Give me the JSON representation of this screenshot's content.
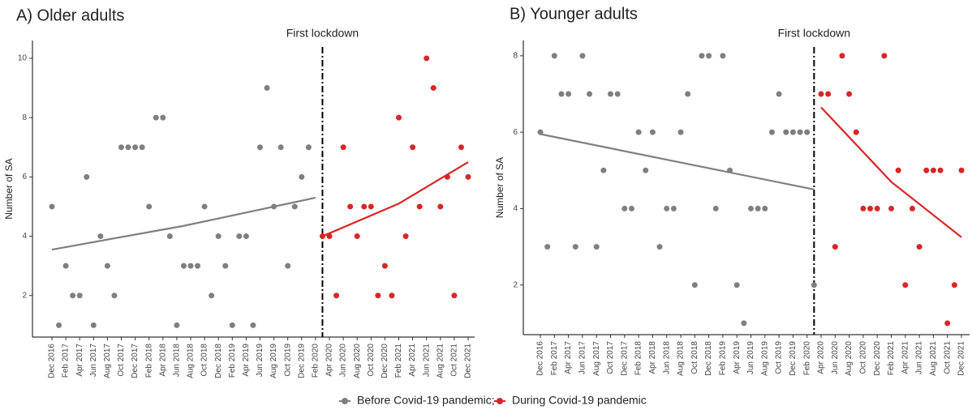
{
  "chart_data": [
    {
      "type": "scatter",
      "title": "A) Older adults",
      "ylabel": "Number of SA",
      "categories": [
        "Dec 2016",
        null,
        "Feb 2017",
        null,
        "Apr 2017",
        null,
        "Jun 2017",
        null,
        "Aug 2017",
        null,
        "Oct 2017",
        null,
        "Dec 2017",
        null,
        "Feb 2018",
        null,
        "Apr 2018",
        null,
        "Jun 2018",
        null,
        "Aug 2018",
        null,
        "Oct 2018",
        null,
        "Dec 2018",
        null,
        "Feb 2019",
        null,
        "Apr 2019",
        null,
        "Jun 2019",
        null,
        "Aug 2019",
        null,
        "Oct 2019",
        null,
        "Dec 2019",
        null,
        "Feb 2020",
        null,
        "Apr 2020",
        null,
        "Jun 2020",
        null,
        "Aug 2020",
        null,
        "Oct 2020",
        null,
        "Dec 2020",
        null,
        "Feb 2021",
        null,
        "Apr 2021",
        null,
        "Jun 2021",
        null,
        "Aug 2021",
        null,
        "Oct 2021",
        null,
        "Dec 2021"
      ],
      "ylim": [
        0.6,
        10.6
      ],
      "yticks": [
        2,
        4,
        6,
        8,
        10
      ],
      "annotation": {
        "text": "First lockdown",
        "x_index": 39
      },
      "series": [
        {
          "name": "Before Covid-19 pandemic;",
          "color": "#7f7f7f",
          "values": [
            5,
            1,
            3,
            2,
            2,
            6,
            1,
            4,
            3,
            2,
            7,
            7,
            7,
            7,
            5,
            8,
            8,
            4,
            1,
            3,
            3,
            3,
            5,
            2,
            4,
            3,
            1,
            4,
            4,
            1,
            7,
            9,
            5,
            7,
            3,
            5,
            6,
            7,
            null,
            null,
            null,
            null,
            null,
            null,
            null,
            null,
            null,
            null,
            null,
            null,
            null,
            null,
            null,
            null,
            null,
            null,
            null,
            null,
            null,
            null,
            null
          ],
          "trend": {
            "x_index": [
              0,
              19,
              38
            ],
            "values": [
              3.55,
              4.35,
              5.3
            ]
          }
        },
        {
          "name": "During Covid-19 pandemic",
          "color": "#d62728",
          "values": [
            null,
            null,
            null,
            null,
            null,
            null,
            null,
            null,
            null,
            null,
            null,
            null,
            null,
            null,
            null,
            null,
            null,
            null,
            null,
            null,
            null,
            null,
            null,
            null,
            null,
            null,
            null,
            null,
            null,
            null,
            null,
            null,
            null,
            null,
            null,
            null,
            null,
            null,
            null,
            4,
            4,
            2,
            7,
            5,
            4,
            5,
            5,
            2,
            3,
            2,
            8,
            4,
            7,
            5,
            10,
            9,
            5,
            6,
            2,
            7,
            6
          ],
          "trend": {
            "x_index": [
              39,
              50,
              60
            ],
            "values": [
              4.0,
              5.1,
              6.5
            ]
          }
        }
      ]
    },
    {
      "type": "scatter",
      "title": "B) Younger adults",
      "ylabel": "Number of SA",
      "categories": [
        "Dec 2016",
        null,
        "Feb 2017",
        null,
        "Apr 2017",
        null,
        "Jun 2017",
        null,
        "Aug 2017",
        null,
        "Oct 2017",
        null,
        "Dec 2017",
        null,
        "Feb 2018",
        null,
        "Apr 2018",
        null,
        "Jun 2018",
        null,
        "Aug 2018",
        null,
        "Oct 2018",
        null,
        "Dec 2018",
        null,
        "Feb 2019",
        null,
        "Apr 2019",
        null,
        "Jun 2019",
        null,
        "Aug 2019",
        null,
        "Oct 2019",
        null,
        "Dec 2019",
        null,
        "Feb 2020",
        null,
        "Apr 2020",
        null,
        "Jun 2020",
        null,
        "Aug 2020",
        null,
        "Oct 2020",
        null,
        "Dec 2020",
        null,
        "Feb 2021",
        null,
        "Apr 2021",
        null,
        "Jun 2021",
        null,
        "Aug 2021",
        null,
        "Oct 2021",
        null,
        "Dec 2021"
      ],
      "ylim": [
        0.7,
        8.4
      ],
      "yticks": [
        2,
        4,
        6,
        8
      ],
      "annotation": {
        "text": "First lockdown",
        "x_index": 39
      },
      "series": [
        {
          "color": "#7f7f7f",
          "values": [
            6,
            3,
            8,
            7,
            7,
            3,
            8,
            7,
            3,
            5,
            7,
            7,
            4,
            4,
            6,
            5,
            6,
            3,
            4,
            4,
            6,
            7,
            2,
            8,
            8,
            4,
            8,
            5,
            2,
            1,
            4,
            4,
            4,
            6,
            7,
            6,
            6,
            6,
            6,
            2,
            null,
            null,
            null,
            null,
            null,
            null,
            null,
            null,
            null,
            null,
            null,
            null,
            null,
            null,
            null,
            null,
            null,
            null,
            null,
            null,
            null
          ],
          "trend": {
            "x_index": [
              0,
              39
            ],
            "values": [
              5.95,
              4.5
            ]
          }
        },
        {
          "color": "#d62728",
          "values": [
            null,
            null,
            null,
            null,
            null,
            null,
            null,
            null,
            null,
            null,
            null,
            null,
            null,
            null,
            null,
            null,
            null,
            null,
            null,
            null,
            null,
            null,
            null,
            null,
            null,
            null,
            null,
            null,
            null,
            null,
            null,
            null,
            null,
            null,
            null,
            null,
            null,
            null,
            null,
            null,
            7,
            7,
            3,
            8,
            7,
            6,
            4,
            4,
            4,
            8,
            4,
            5,
            2,
            4,
            3,
            5,
            5,
            5,
            1,
            2,
            5
          ],
          "trend": {
            "x_index": [
              40,
              50,
              60
            ],
            "values": [
              6.65,
              4.7,
              3.25
            ]
          }
        }
      ]
    }
  ]
}
